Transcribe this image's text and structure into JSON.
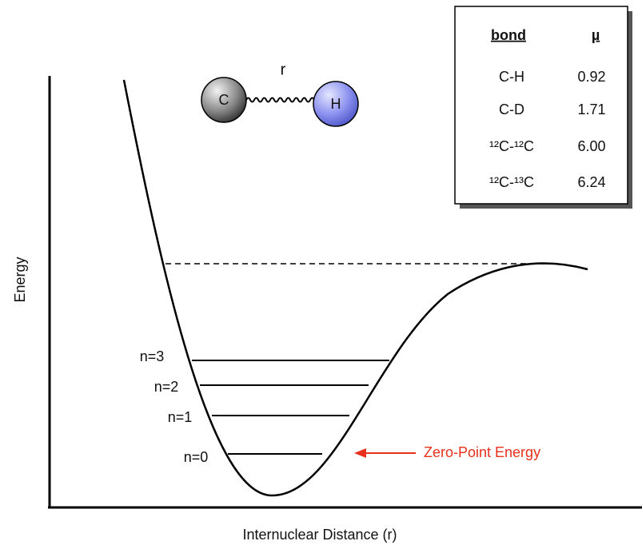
{
  "axes": {
    "y_label": "Energy",
    "x_label": "Internuclear Distance (r)"
  },
  "molecule": {
    "atom_left": "C",
    "atom_right": "H",
    "bond_label": "r"
  },
  "table": {
    "header": [
      "bond",
      "µ"
    ],
    "rows": [
      [
        "C-H",
        "0.92"
      ],
      [
        "C-D",
        "1.71"
      ],
      [
        "¹²C-¹²C",
        "6.00"
      ],
      [
        "¹²C-¹³C",
        "6.24"
      ]
    ]
  },
  "levels": [
    "n=3",
    "n=2",
    "n=1",
    "n=0"
  ],
  "annotation": "Zero-Point Energy"
}
